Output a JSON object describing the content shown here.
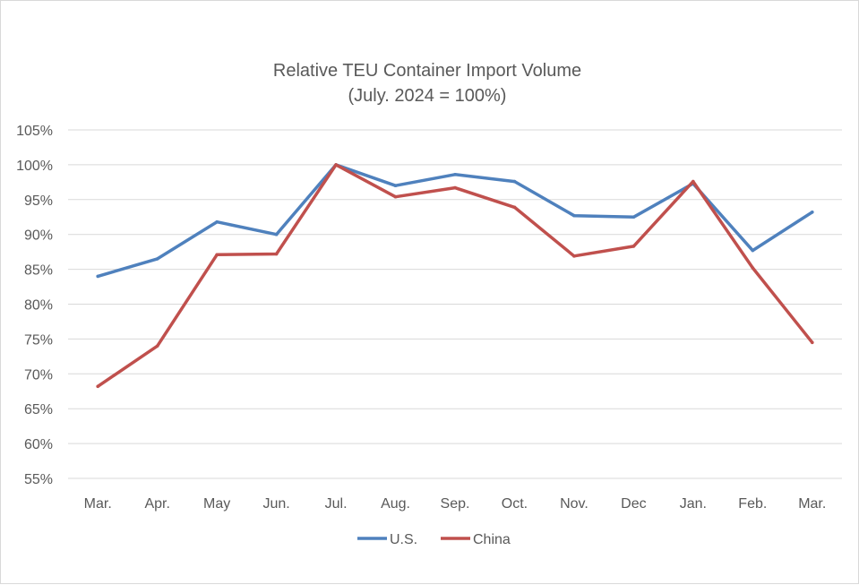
{
  "chart_data": {
    "type": "line",
    "title": "Relative TEU Container Import Volume",
    "subtitle": "(July. 2024 = 100%)",
    "xlabel": "",
    "ylabel": "",
    "categories": [
      "Mar.",
      "Apr.",
      "May",
      "Jun.",
      "Jul.",
      "Aug.",
      "Sep.",
      "Oct.",
      "Nov.",
      "Dec",
      "Jan.",
      "Feb.",
      "Mar."
    ],
    "ylim": [
      55,
      105
    ],
    "yticks": [
      55,
      60,
      65,
      70,
      75,
      80,
      85,
      90,
      95,
      100,
      105
    ],
    "ytick_labels": [
      "55%",
      "60%",
      "65%",
      "70%",
      "75%",
      "80%",
      "85%",
      "90%",
      "95%",
      "100%",
      "105%"
    ],
    "grid": true,
    "legend_position": "bottom",
    "series": [
      {
        "name": "U.S.",
        "color": "#4f81bd",
        "values": [
          84.0,
          86.5,
          91.8,
          90.0,
          100.0,
          97.0,
          98.6,
          97.6,
          92.7,
          92.5,
          97.3,
          87.7,
          93.2
        ]
      },
      {
        "name": "China",
        "color": "#c0504d",
        "values": [
          68.2,
          74.0,
          87.1,
          87.2,
          100.0,
          95.4,
          96.7,
          93.9,
          86.9,
          88.3,
          97.6,
          85.2,
          74.5
        ]
      }
    ]
  }
}
